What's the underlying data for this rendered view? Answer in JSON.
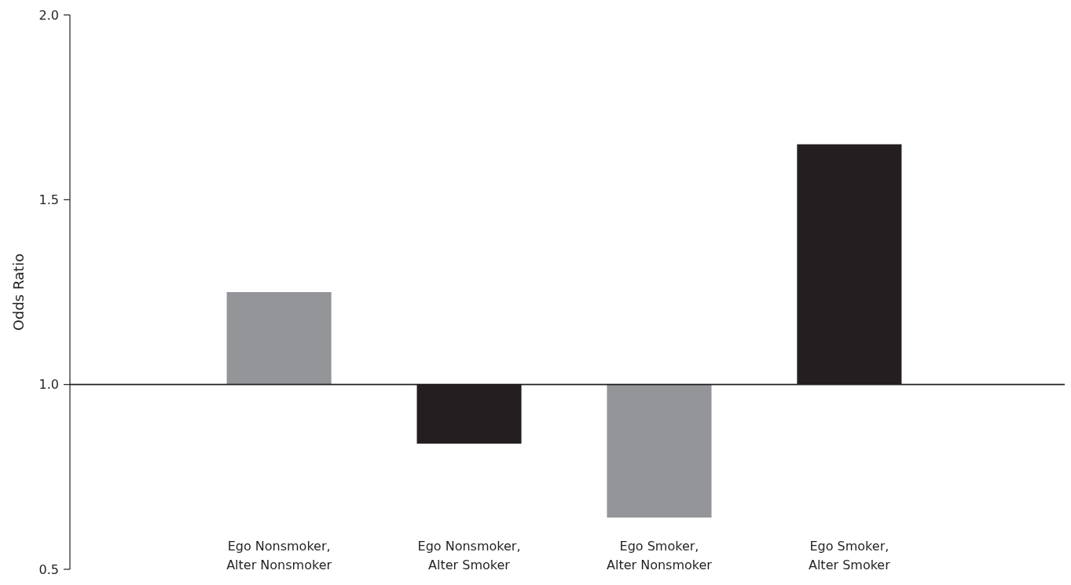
{
  "chart_data": {
    "type": "bar",
    "ylabel": "Odds Ratio",
    "categories": [
      "Ego Nonsmoker, Alter Nonsmoker",
      "Ego Nonsmoker, Alter Smoker",
      "Ego Smoker, Alter Nonsmoker",
      "Ego Smoker, Alter Smoker"
    ],
    "base": [
      1,
      1,
      1,
      1
    ],
    "values": [
      0.25,
      -0.16,
      -0.36,
      0.65
    ],
    "colors": [
      "#939598",
      "#231f20",
      "#939598",
      "#231f20"
    ],
    "ylim": [
      0.5,
      2.0
    ],
    "yticks": [
      {
        "value": 0.5,
        "label": "0.5"
      },
      {
        "value": 1.0,
        "label": "1.0"
      },
      {
        "value": 1.5,
        "label": "1.5"
      },
      {
        "value": 2.0,
        "label": "2.0"
      }
    ],
    "ref_lines": [
      {
        "axis": "y",
        "value": 1,
        "color": "#231f20"
      }
    ]
  }
}
